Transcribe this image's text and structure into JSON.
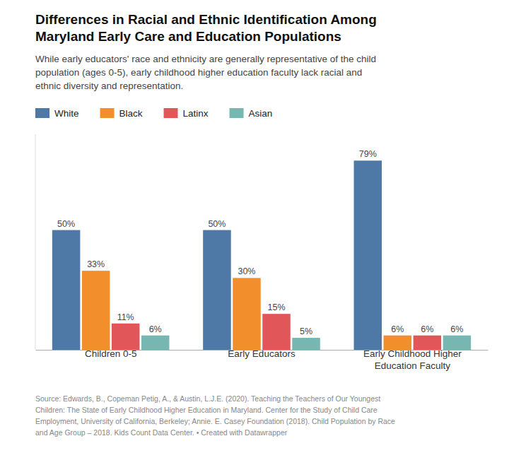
{
  "chart_data": {
    "type": "bar",
    "title": "Differences in Racial and Ethnic Identification Among\nMaryland Early Care and Education Populations",
    "subtitle": "While early educators' race and ethnicity are generally representative of the child\npopulation (ages 0-5), early childhood higher education faculty lack racial and\nethnic diversity and representation.",
    "source": "Source: Edwards, B., Copeman Petig, A., & Austin, L.J.E. (2020). Teaching the Teachers of Our Youngest\nChildren: The State of Early Childhood Higher Education in Maryland. Center for the Study of Child Care\nEmployment, University of California, Berkeley; Annie. E. Casey Foundation (2018). Child Population by Race\nand Age Group – 2018. Kids Count Data Center. • Created with Datawrapper",
    "categories": [
      "Children 0-5",
      "Early Educators",
      "Early Childhood Higher\nEducation Faculty"
    ],
    "series": [
      {
        "name": "White",
        "values": [
          50,
          50,
          79
        ],
        "value_labels": [
          "50%",
          "50%",
          "79%"
        ]
      },
      {
        "name": "Black",
        "values": [
          33,
          30,
          6
        ],
        "value_labels": [
          "33%",
          "30%",
          "6%"
        ]
      },
      {
        "name": "Latinx",
        "values": [
          11,
          15,
          6
        ],
        "value_labels": [
          "11%",
          "15%",
          "6%"
        ]
      },
      {
        "name": "Asian",
        "values": [
          6,
          5,
          6
        ],
        "value_labels": [
          "6%",
          "5%",
          "6%"
        ]
      }
    ],
    "ylim": [
      0,
      90
    ],
    "grid": false,
    "legend": "top",
    "data_labels": true,
    "tick_labels": "x"
  }
}
